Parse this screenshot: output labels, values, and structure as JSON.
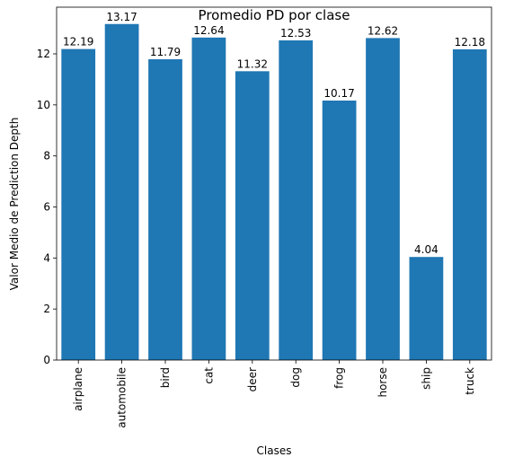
{
  "chart_data": {
    "type": "bar",
    "title": "Promedio PD por clase",
    "xlabel": "Clases",
    "ylabel": "Valor Medio de Prediction Depth",
    "categories": [
      "airplane",
      "automobile",
      "bird",
      "cat",
      "deer",
      "dog",
      "frog",
      "horse",
      "ship",
      "truck"
    ],
    "values": [
      12.19,
      13.17,
      11.79,
      12.64,
      11.32,
      12.53,
      10.17,
      12.62,
      4.04,
      12.18
    ],
    "data_labels": [
      "12.19",
      "13.17",
      "11.79",
      "12.64",
      "11.32",
      "12.53",
      "10.17",
      "12.62",
      "4.04",
      "12.18"
    ],
    "ylim": [
      0,
      13.83
    ],
    "yticks": [
      0,
      2,
      4,
      6,
      8,
      10,
      12
    ],
    "grid": false,
    "bar_color": "#1f77b4",
    "x_tick_rotation": "vertical"
  }
}
